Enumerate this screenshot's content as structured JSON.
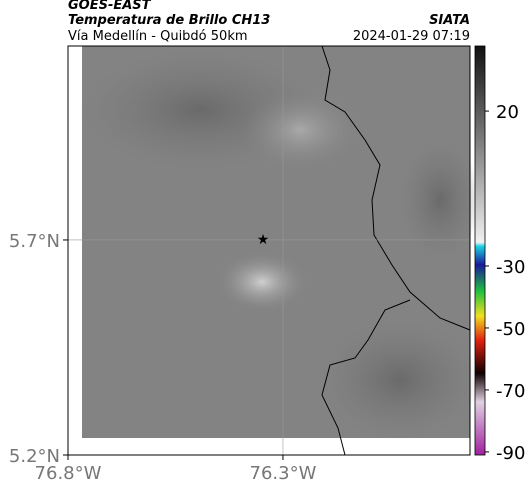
{
  "header": {
    "source": "GOES-EAST",
    "product": "Temperatura de Brillo CH13",
    "region": "Vía Medellín - Quibdó 50km",
    "agency": "SIATA",
    "timestamp": "2024-01-29 07:19"
  },
  "map": {
    "xlim": [
      -76.8,
      -75.865
    ],
    "ylim": [
      5.2,
      6.151
    ],
    "xticks": [
      {
        "value": -76.8,
        "label": "76.8°W"
      },
      {
        "value": -76.3,
        "label": "76.3°W"
      }
    ],
    "yticks": [
      {
        "value": 5.2,
        "label": "5.2°N"
      },
      {
        "value": 5.7,
        "label": "5.7°N"
      }
    ],
    "grid": true
  },
  "colorbar": {
    "lim": [
      -91,
      41
    ],
    "ticks": [
      20,
      -30,
      -50,
      -70,
      -90
    ]
  }
}
